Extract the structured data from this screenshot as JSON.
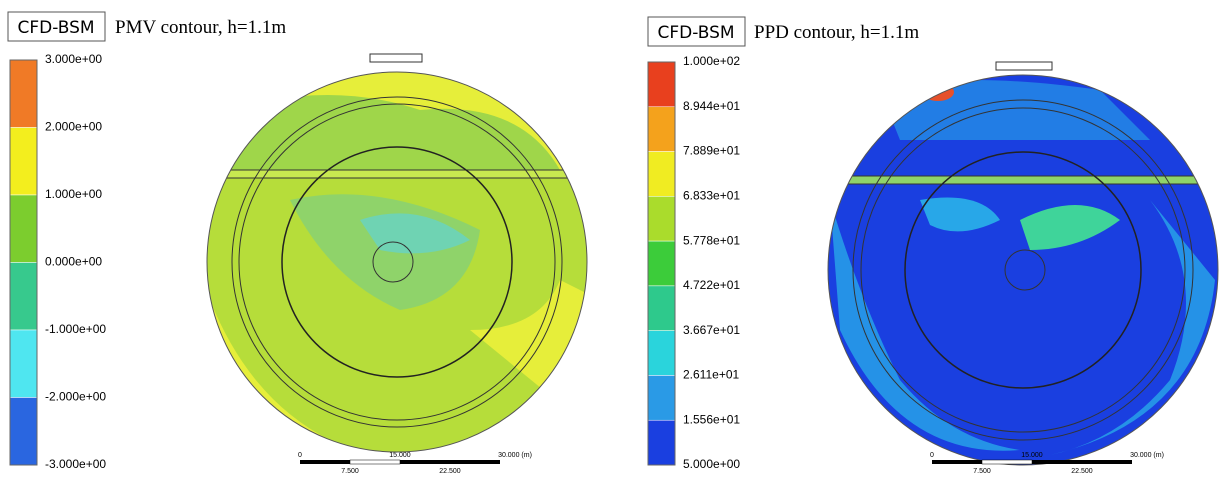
{
  "panels": [
    {
      "badge": "CFD-BSM",
      "title": "PMV contour, h=1.1m",
      "colorbar": [
        "3.000e+00",
        "2.000e+00",
        "1.000e+00",
        "0.000e+00",
        "-1.000e+00",
        "-2.000e+00",
        "-3.000e+00"
      ],
      "scale_top": [
        "0",
        "15.000",
        "30.000 (m)"
      ],
      "scale_bottom": [
        "7.500",
        "22.500"
      ]
    },
    {
      "badge": "CFD-BSM",
      "title": "PPD contour, h=1.1m",
      "colorbar": [
        "1.000e+02",
        "8.944e+01",
        "7.889e+01",
        "6.833e+01",
        "5.778e+01",
        "4.722e+01",
        "3.667e+01",
        "2.611e+01",
        "1.556e+01",
        "5.000e+00"
      ],
      "scale_top": [
        "0",
        "15.000",
        "30.000 (m)"
      ],
      "scale_bottom": [
        "7.500",
        "22.500"
      ]
    }
  ]
}
